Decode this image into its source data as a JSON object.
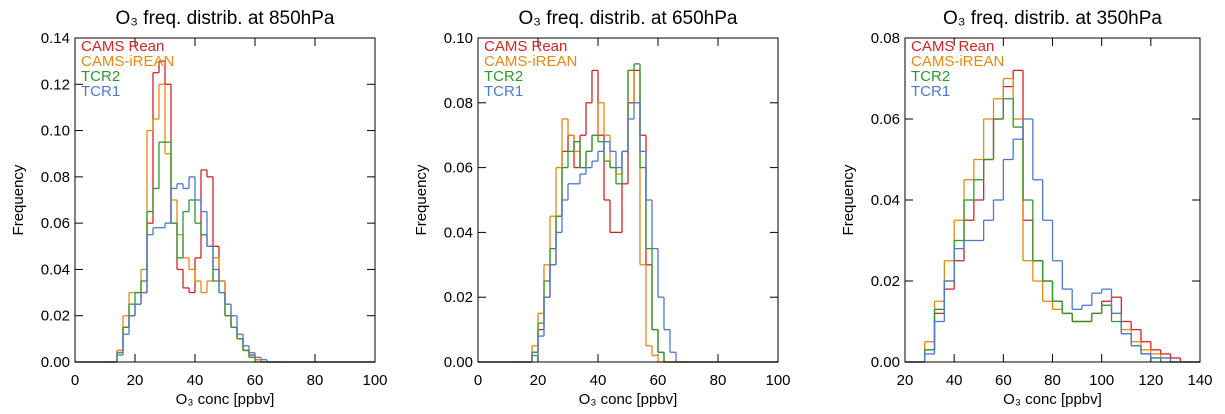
{
  "chart_data": [
    {
      "type": "histogram",
      "title": "O₃ freq. distrib. at  850hPa",
      "xlabel": "O₃ conc [ppbv]",
      "ylabel": "Frequency",
      "bins": [
        0,
        10,
        12,
        14,
        16,
        18,
        20,
        22,
        24,
        26,
        28,
        30,
        32,
        34,
        36,
        38,
        40,
        42,
        44,
        46,
        48,
        50,
        52,
        54,
        56,
        58,
        60,
        62,
        64,
        66,
        68,
        70,
        100
      ],
      "xlim": [
        0,
        100
      ],
      "xticks": [
        0,
        20,
        40,
        60,
        80,
        100
      ],
      "ylim": [
        0,
        0.14
      ],
      "yticks": [
        {
          "value": 0,
          "label": "0.00"
        },
        {
          "value": 0.02,
          "label": "0.02"
        },
        {
          "value": 0.04,
          "label": "0.04"
        },
        {
          "value": 0.06,
          "label": "0.06"
        },
        {
          "value": 0.08,
          "label": "0.08"
        },
        {
          "value": 0.1,
          "label": "0.10"
        },
        {
          "value": 0.12,
          "label": "0.12"
        },
        {
          "value": 0.14,
          "label": "0.14"
        }
      ],
      "series": [
        {
          "name": "CAMS Rean",
          "color": "#d42424",
          "values": [
            0,
            0,
            0,
            0.005,
            0.015,
            0.02,
            0.025,
            0.03,
            0.06,
            0.125,
            0.13,
            0.12,
            0.06,
            0.04,
            0.032,
            0.03,
            0.045,
            0.083,
            0.08,
            0.05,
            0.035,
            0.02,
            0.015,
            0.01,
            0.005,
            0.003,
            0.001,
            0,
            0,
            0,
            0,
            0
          ]
        },
        {
          "name": "CAMS-iREAN",
          "color": "#e8890f",
          "values": [
            0,
            0,
            0,
            0.005,
            0.02,
            0.03,
            0.03,
            0.04,
            0.1,
            0.105,
            0.12,
            0.09,
            0.07,
            0.055,
            0.045,
            0.04,
            0.035,
            0.03,
            0.035,
            0.045,
            0.035,
            0.025,
            0.015,
            0.01,
            0.005,
            0.002,
            0.001,
            0,
            0,
            0,
            0,
            0
          ]
        },
        {
          "name": "TCR2",
          "color": "#2b9a2b",
          "values": [
            0,
            0,
            0,
            0.004,
            0.015,
            0.025,
            0.03,
            0.035,
            0.065,
            0.075,
            0.095,
            0.095,
            0.06,
            0.045,
            0.065,
            0.07,
            0.06,
            0.055,
            0.05,
            0.035,
            0.03,
            0.02,
            0.015,
            0.01,
            0.005,
            0.002,
            0,
            0,
            0,
            0,
            0,
            0
          ]
        },
        {
          "name": "TCR1",
          "color": "#4b78d6",
          "values": [
            0,
            0,
            0,
            0.003,
            0.012,
            0.02,
            0.025,
            0.03,
            0.055,
            0.058,
            0.058,
            0.06,
            0.075,
            0.077,
            0.075,
            0.08,
            0.07,
            0.065,
            0.05,
            0.04,
            0.03,
            0.025,
            0.02,
            0.012,
            0.007,
            0.004,
            0.002,
            0.001,
            0,
            0,
            0,
            0
          ]
        }
      ]
    },
    {
      "type": "histogram",
      "title": "O₃ freq. distrib. at  650hPa",
      "xlabel": "O₃ conc [ppbv]",
      "ylabel": "Frequency",
      "bins": [
        0,
        10,
        12,
        14,
        16,
        18,
        20,
        22,
        24,
        26,
        28,
        30,
        32,
        34,
        36,
        38,
        40,
        42,
        44,
        46,
        48,
        50,
        52,
        54,
        56,
        58,
        60,
        62,
        64,
        66,
        68,
        70,
        100
      ],
      "xlim": [
        0,
        100
      ],
      "xticks": [
        0,
        20,
        40,
        60,
        80,
        100
      ],
      "ylim": [
        0,
        0.1
      ],
      "yticks": [
        {
          "value": 0,
          "label": "0.00"
        },
        {
          "value": 0.02,
          "label": "0.02"
        },
        {
          "value": 0.04,
          "label": "0.04"
        },
        {
          "value": 0.06,
          "label": "0.06"
        },
        {
          "value": 0.08,
          "label": "0.08"
        },
        {
          "value": 0.1,
          "label": "0.10"
        }
      ],
      "series": [
        {
          "name": "CAMS Rean",
          "color": "#d42424",
          "values": [
            0,
            0,
            0,
            0,
            0,
            0.003,
            0.01,
            0.02,
            0.03,
            0.045,
            0.065,
            0.07,
            0.06,
            0.07,
            0.08,
            0.09,
            0.07,
            0.05,
            0.04,
            0.04,
            0.055,
            0.08,
            0.09,
            0.07,
            0.03,
            0.01,
            0.003,
            0,
            0,
            0,
            0,
            0
          ]
        },
        {
          "name": "CAMS-iREAN",
          "color": "#e8890f",
          "values": [
            0,
            0,
            0,
            0,
            0,
            0.005,
            0.015,
            0.03,
            0.045,
            0.06,
            0.075,
            0.07,
            0.065,
            0.06,
            0.065,
            0.07,
            0.08,
            0.07,
            0.06,
            0.058,
            0.065,
            0.09,
            0.08,
            0.03,
            0.005,
            0.002,
            0,
            0,
            0,
            0,
            0,
            0
          ]
        },
        {
          "name": "TCR2",
          "color": "#2b9a2b",
          "values": [
            0,
            0,
            0,
            0,
            0,
            0.003,
            0.012,
            0.025,
            0.035,
            0.045,
            0.06,
            0.065,
            0.068,
            0.06,
            0.065,
            0.07,
            0.068,
            0.062,
            0.06,
            0.055,
            0.065,
            0.09,
            0.092,
            0.06,
            0.035,
            0.01,
            0.003,
            0,
            0,
            0,
            0,
            0
          ]
        },
        {
          "name": "TCR1",
          "color": "#4b78d6",
          "values": [
            0,
            0,
            0,
            0,
            0,
            0.002,
            0.008,
            0.02,
            0.03,
            0.04,
            0.05,
            0.055,
            0.055,
            0.058,
            0.06,
            0.062,
            0.065,
            0.068,
            0.065,
            0.06,
            0.065,
            0.075,
            0.08,
            0.065,
            0.05,
            0.035,
            0.02,
            0.01,
            0.003,
            0,
            0,
            0
          ]
        }
      ]
    },
    {
      "type": "histogram",
      "title": "O₃ freq. distrib. at  350hPa",
      "xlabel": "O₃ conc [ppbv]",
      "ylabel": "Frequency",
      "bins": [
        20,
        24,
        28,
        32,
        36,
        40,
        44,
        48,
        52,
        56,
        60,
        64,
        68,
        72,
        76,
        80,
        84,
        88,
        92,
        96,
        100,
        104,
        108,
        112,
        116,
        120,
        124,
        128,
        132,
        136,
        140
      ],
      "xlim": [
        20,
        140
      ],
      "xticks": [
        20,
        40,
        60,
        80,
        100,
        120,
        140
      ],
      "ylim": [
        0,
        0.08
      ],
      "yticks": [
        {
          "value": 0,
          "label": "0.00"
        },
        {
          "value": 0.02,
          "label": "0.02"
        },
        {
          "value": 0.04,
          "label": "0.04"
        },
        {
          "value": 0.06,
          "label": "0.06"
        },
        {
          "value": 0.08,
          "label": "0.08"
        }
      ],
      "series": [
        {
          "name": "CAMS Rean",
          "color": "#d42424",
          "values": [
            0,
            0,
            0.003,
            0.012,
            0.018,
            0.025,
            0.035,
            0.04,
            0.05,
            0.06,
            0.068,
            0.072,
            0.035,
            0.025,
            0.02,
            0.015,
            0.012,
            0.01,
            0.01,
            0.012,
            0.015,
            0.016,
            0.01,
            0.008,
            0.005,
            0.003,
            0.002,
            0.001,
            0,
            0
          ]
        },
        {
          "name": "CAMS-iREAN",
          "color": "#e8890f",
          "values": [
            0,
            0,
            0.005,
            0.015,
            0.025,
            0.035,
            0.045,
            0.05,
            0.06,
            0.065,
            0.07,
            0.06,
            0.025,
            0.02,
            0.015,
            0.013,
            0.012,
            0.01,
            0.01,
            0.012,
            0.014,
            0.012,
            0.008,
            0.005,
            0.003,
            0.002,
            0.001,
            0,
            0,
            0
          ]
        },
        {
          "name": "TCR2",
          "color": "#2b9a2b",
          "values": [
            0,
            0,
            0.003,
            0.013,
            0.02,
            0.03,
            0.04,
            0.045,
            0.05,
            0.06,
            0.065,
            0.058,
            0.04,
            0.025,
            0.02,
            0.015,
            0.012,
            0.01,
            0.01,
            0.012,
            0.014,
            0.01,
            0.007,
            0.004,
            0.002,
            0.001,
            0,
            0,
            0,
            0
          ]
        },
        {
          "name": "TCR1",
          "color": "#4b78d6",
          "values": [
            0,
            0,
            0.002,
            0.01,
            0.02,
            0.028,
            0.03,
            0.03,
            0.035,
            0.04,
            0.05,
            0.055,
            0.06,
            0.045,
            0.035,
            0.025,
            0.018,
            0.013,
            0.014,
            0.017,
            0.018,
            0.012,
            0.007,
            0.004,
            0.002,
            0.001,
            0.001,
            0,
            0,
            0
          ]
        }
      ]
    }
  ]
}
